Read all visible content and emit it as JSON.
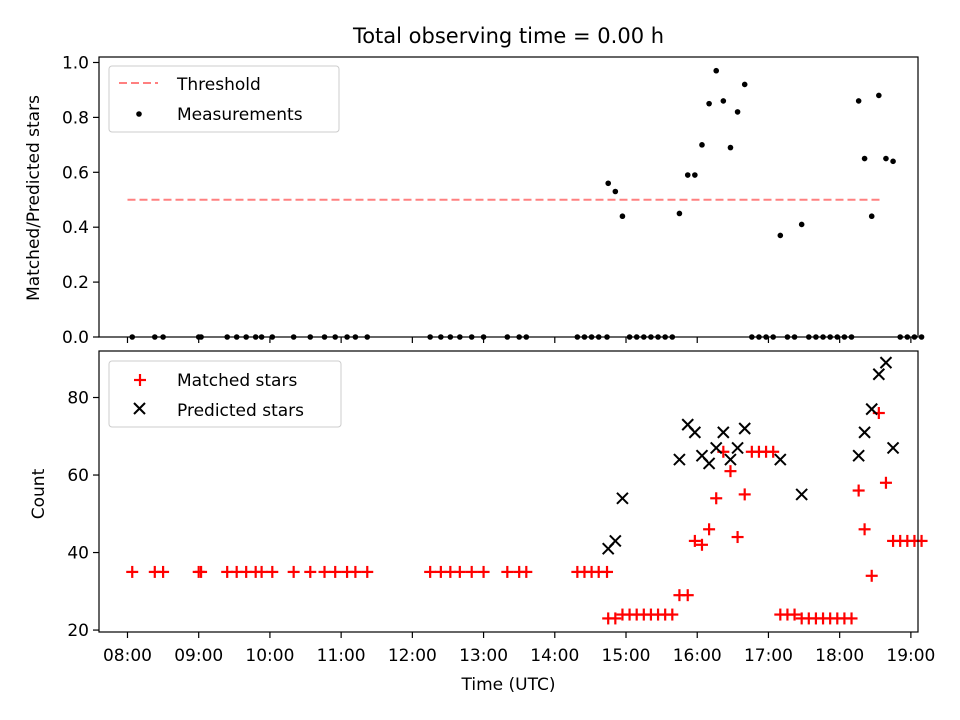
{
  "chart_data": [
    {
      "type": "scatter",
      "title": "Total observing time = 0.00 h",
      "ylabel": "Matched/Predicted stars",
      "xlim": [
        "07:36",
        "19:06"
      ],
      "ylim": [
        0,
        1.02
      ],
      "xticks": [
        "08:00",
        "09:00",
        "10:00",
        "11:00",
        "12:00",
        "13:00",
        "14:00",
        "15:00",
        "16:00",
        "17:00",
        "18:00",
        "19:00"
      ],
      "yticks": [
        "0.0",
        "0.2",
        "0.4",
        "0.6",
        "0.8",
        "1.0"
      ],
      "grid": false,
      "legend": "top-left",
      "threshold": {
        "name": "Threshold",
        "value": 0.5,
        "x_range": [
          "08:00",
          "18:36"
        ],
        "color": "#ff8080",
        "style": "dashed"
      },
      "series": [
        {
          "name": "Measurements",
          "color": "#000000",
          "marker": "dot",
          "points": [
            [
              "08:04",
              0
            ],
            [
              "08:23",
              0
            ],
            [
              "08:30",
              0
            ],
            [
              "09:00",
              0
            ],
            [
              "09:02",
              0
            ],
            [
              "09:24",
              0
            ],
            [
              "09:32",
              0
            ],
            [
              "09:40",
              0
            ],
            [
              "09:48",
              0
            ],
            [
              "09:53",
              0
            ],
            [
              "10:02",
              0
            ],
            [
              "10:20",
              0
            ],
            [
              "10:34",
              0
            ],
            [
              "10:46",
              0
            ],
            [
              "10:55",
              0
            ],
            [
              "11:05",
              0
            ],
            [
              "11:12",
              0
            ],
            [
              "11:22",
              0
            ],
            [
              "12:15",
              0
            ],
            [
              "12:24",
              0
            ],
            [
              "12:32",
              0
            ],
            [
              "12:40",
              0
            ],
            [
              "12:50",
              0
            ],
            [
              "13:00",
              0
            ],
            [
              "13:20",
              0
            ],
            [
              "13:30",
              0
            ],
            [
              "13:36",
              0
            ],
            [
              "14:19",
              0
            ],
            [
              "14:25",
              0
            ],
            [
              "14:31",
              0
            ],
            [
              "14:37",
              0
            ],
            [
              "14:44",
              0
            ],
            [
              "14:45",
              0.56
            ],
            [
              "14:51",
              0.53
            ],
            [
              "14:57",
              0.44
            ],
            [
              "15:03",
              0
            ],
            [
              "15:09",
              0
            ],
            [
              "15:15",
              0
            ],
            [
              "15:21",
              0
            ],
            [
              "15:27",
              0
            ],
            [
              "15:33",
              0
            ],
            [
              "15:39",
              0
            ],
            [
              "15:45",
              0.45
            ],
            [
              "15:52",
              0.59
            ],
            [
              "15:58",
              0.59
            ],
            [
              "16:04",
              0.7
            ],
            [
              "16:10",
              0.85
            ],
            [
              "16:16",
              0.97
            ],
            [
              "16:22",
              0.86
            ],
            [
              "16:28",
              0.69
            ],
            [
              "16:34",
              0.82
            ],
            [
              "16:40",
              0.92
            ],
            [
              "16:46",
              0
            ],
            [
              "16:52",
              0
            ],
            [
              "16:58",
              0
            ],
            [
              "17:04",
              0
            ],
            [
              "17:10",
              0.37
            ],
            [
              "17:16",
              0
            ],
            [
              "17:22",
              0
            ],
            [
              "17:28",
              0.41
            ],
            [
              "17:34",
              0
            ],
            [
              "17:40",
              0
            ],
            [
              "17:46",
              0
            ],
            [
              "17:52",
              0
            ],
            [
              "17:58",
              0
            ],
            [
              "18:04",
              0
            ],
            [
              "18:10",
              0
            ],
            [
              "18:16",
              0.86
            ],
            [
              "18:21",
              0.65
            ],
            [
              "18:27",
              0.44
            ],
            [
              "18:33",
              0.88
            ],
            [
              "18:39",
              0.65
            ],
            [
              "18:45",
              0.64
            ],
            [
              "18:51",
              0
            ],
            [
              "18:57",
              0
            ],
            [
              "19:03",
              0
            ],
            [
              "19:09",
              0
            ]
          ]
        }
      ]
    },
    {
      "type": "scatter",
      "xlabel": "Time (UTC)",
      "ylabel": "Count",
      "xlim": [
        "07:36",
        "19:06"
      ],
      "ylim": [
        19.5,
        92
      ],
      "xticks": [
        "08:00",
        "09:00",
        "10:00",
        "11:00",
        "12:00",
        "13:00",
        "14:00",
        "15:00",
        "16:00",
        "17:00",
        "18:00",
        "19:00"
      ],
      "yticks": [
        "20",
        "40",
        "60",
        "80"
      ],
      "grid": false,
      "legend": "top-left",
      "series": [
        {
          "name": "Matched stars",
          "color": "#ff0000",
          "marker": "plus",
          "points": [
            [
              "08:04",
              35
            ],
            [
              "08:23",
              35
            ],
            [
              "08:30",
              35
            ],
            [
              "09:00",
              35
            ],
            [
              "09:02",
              35
            ],
            [
              "09:24",
              35
            ],
            [
              "09:32",
              35
            ],
            [
              "09:40",
              35
            ],
            [
              "09:48",
              35
            ],
            [
              "09:53",
              35
            ],
            [
              "10:02",
              35
            ],
            [
              "10:20",
              35
            ],
            [
              "10:34",
              35
            ],
            [
              "10:46",
              35
            ],
            [
              "10:55",
              35
            ],
            [
              "11:05",
              35
            ],
            [
              "11:12",
              35
            ],
            [
              "11:22",
              35
            ],
            [
              "12:15",
              35
            ],
            [
              "12:24",
              35
            ],
            [
              "12:32",
              35
            ],
            [
              "12:40",
              35
            ],
            [
              "12:50",
              35
            ],
            [
              "13:00",
              35
            ],
            [
              "13:20",
              35
            ],
            [
              "13:30",
              35
            ],
            [
              "13:36",
              35
            ],
            [
              "14:19",
              35
            ],
            [
              "14:25",
              35
            ],
            [
              "14:31",
              35
            ],
            [
              "14:37",
              35
            ],
            [
              "14:44",
              35
            ],
            [
              "14:45",
              23
            ],
            [
              "14:51",
              23
            ],
            [
              "14:57",
              24
            ],
            [
              "15:03",
              24
            ],
            [
              "15:09",
              24
            ],
            [
              "15:15",
              24
            ],
            [
              "15:21",
              24
            ],
            [
              "15:27",
              24
            ],
            [
              "15:33",
              24
            ],
            [
              "15:39",
              24
            ],
            [
              "15:45",
              29
            ],
            [
              "15:52",
              29
            ],
            [
              "15:58",
              43
            ],
            [
              "16:04",
              42
            ],
            [
              "16:10",
              46
            ],
            [
              "16:16",
              54
            ],
            [
              "16:22",
              66
            ],
            [
              "16:28",
              61
            ],
            [
              "16:34",
              44
            ],
            [
              "16:40",
              55
            ],
            [
              "16:46",
              66
            ],
            [
              "16:52",
              66
            ],
            [
              "16:58",
              66
            ],
            [
              "17:04",
              66
            ],
            [
              "17:10",
              24
            ],
            [
              "17:16",
              24
            ],
            [
              "17:22",
              24
            ],
            [
              "17:28",
              23
            ],
            [
              "17:34",
              23
            ],
            [
              "17:40",
              23
            ],
            [
              "17:46",
              23
            ],
            [
              "17:52",
              23
            ],
            [
              "17:58",
              23
            ],
            [
              "18:04",
              23
            ],
            [
              "18:10",
              23
            ],
            [
              "18:16",
              56
            ],
            [
              "18:21",
              46
            ],
            [
              "18:27",
              34
            ],
            [
              "18:33",
              76
            ],
            [
              "18:39",
              58
            ],
            [
              "18:45",
              43
            ],
            [
              "18:51",
              43
            ],
            [
              "18:57",
              43
            ],
            [
              "19:03",
              43
            ],
            [
              "19:09",
              43
            ]
          ]
        },
        {
          "name": "Predicted stars",
          "color": "#000000",
          "marker": "x",
          "points": [
            [
              "14:45",
              41
            ],
            [
              "14:51",
              43
            ],
            [
              "14:57",
              54
            ],
            [
              "15:45",
              64
            ],
            [
              "15:52",
              73
            ],
            [
              "15:58",
              71
            ],
            [
              "16:04",
              65
            ],
            [
              "16:10",
              63
            ],
            [
              "16:16",
              67
            ],
            [
              "16:22",
              71
            ],
            [
              "16:28",
              64
            ],
            [
              "16:34",
              67
            ],
            [
              "16:40",
              72
            ],
            [
              "17:10",
              64
            ],
            [
              "17:28",
              55
            ],
            [
              "18:16",
              65
            ],
            [
              "18:21",
              71
            ],
            [
              "18:27",
              77
            ],
            [
              "18:33",
              86
            ],
            [
              "18:39",
              89
            ],
            [
              "18:45",
              67
            ]
          ]
        }
      ]
    }
  ]
}
